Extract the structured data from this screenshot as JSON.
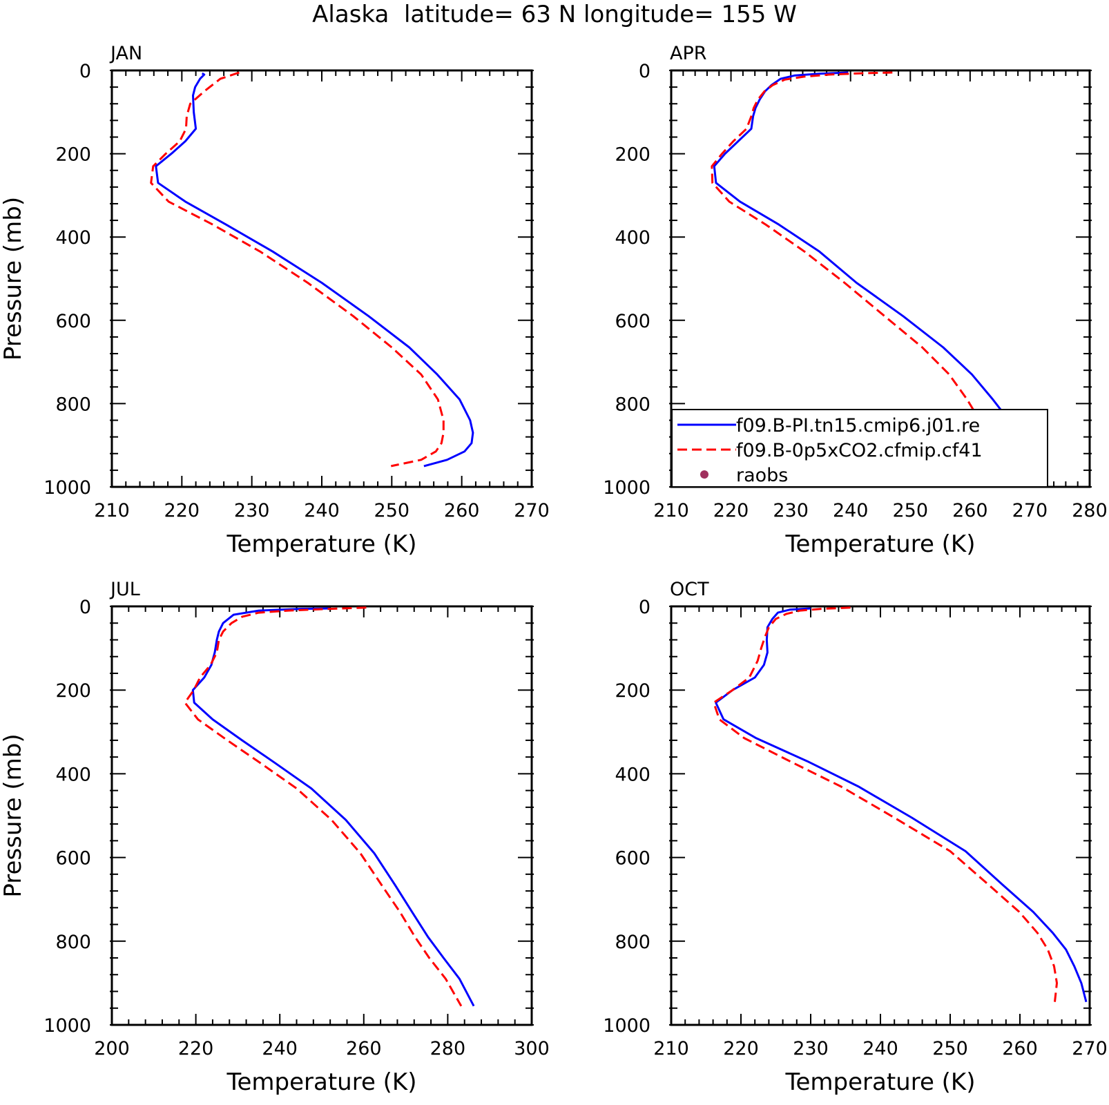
{
  "figure": {
    "title": "Alaska  latitude= 63 N longitude= 155 W"
  },
  "colors": {
    "series_solid": "#0000ff",
    "series_dashed": "#ff0000",
    "raobs_marker": "#a0305e",
    "axis": "#000000"
  },
  "legend": {
    "entries": [
      {
        "label": "f09.B-PI.tn15.cmip6.j01.re",
        "style": "solid",
        "color": "#0000ff"
      },
      {
        "label": "f09.B-0p5xCO2.cfmip.cf41",
        "style": "dashed",
        "color": "#ff0000"
      },
      {
        "label": "raobs",
        "style": "marker",
        "color": "#a0305e"
      }
    ]
  },
  "chart_data": [
    {
      "type": "line",
      "panel": "JAN",
      "xlabel": "Temperature (K)",
      "ylabel": "Pressure (mb)",
      "xlim": [
        210,
        270
      ],
      "ylim": [
        1000,
        0
      ],
      "xticks": [
        210,
        220,
        230,
        240,
        250,
        260,
        270
      ],
      "yticks": [
        0,
        200,
        400,
        600,
        800,
        1000
      ],
      "series": [
        {
          "name": "f09.B-PI.tn15.cmip6.j01.re",
          "style": "solid",
          "points": [
            [
              222.9,
              7
            ],
            [
              223.2,
              10
            ],
            [
              222.6,
              20
            ],
            [
              221.9,
              40
            ],
            [
              221.6,
              60
            ],
            [
              221.7,
              100
            ],
            [
              222.0,
              140
            ],
            [
              220.5,
              170
            ],
            [
              218.5,
              200
            ],
            [
              216.3,
              230
            ],
            [
              216.6,
              270
            ],
            [
              220.5,
              315
            ],
            [
              226.3,
              370
            ],
            [
              233.0,
              435
            ],
            [
              240.0,
              510
            ],
            [
              246.7,
              590
            ],
            [
              252.5,
              665
            ],
            [
              256.5,
              730
            ],
            [
              259.7,
              790
            ],
            [
              261.2,
              840
            ],
            [
              261.6,
              870
            ],
            [
              261.4,
              895
            ],
            [
              260.4,
              915
            ],
            [
              257.9,
              935
            ],
            [
              254.6,
              950
            ]
          ]
        },
        {
          "name": "f09.B-0p5xCO2.cfmip.cf41",
          "style": "dashed",
          "points": [
            [
              228.2,
              5
            ],
            [
              225.5,
              20
            ],
            [
              223.2,
              50
            ],
            [
              221.2,
              80
            ],
            [
              220.7,
              110
            ],
            [
              220.6,
              140
            ],
            [
              219.7,
              170
            ],
            [
              217.7,
              200
            ],
            [
              215.9,
              230
            ],
            [
              215.6,
              270
            ],
            [
              218.1,
              315
            ],
            [
              224.4,
              370
            ],
            [
              231.2,
              435
            ],
            [
              238.0,
              510
            ],
            [
              244.5,
              590
            ],
            [
              250.0,
              665
            ],
            [
              254.2,
              730
            ],
            [
              256.6,
              790
            ],
            [
              257.4,
              840
            ],
            [
              257.4,
              870
            ],
            [
              257.1,
              895
            ],
            [
              256.3,
              915
            ],
            [
              254.2,
              935
            ],
            [
              249.9,
              950
            ]
          ]
        }
      ]
    },
    {
      "type": "line",
      "panel": "APR",
      "xlabel": "Temperature (K)",
      "ylabel": "",
      "xlim": [
        210,
        280
      ],
      "ylim": [
        1000,
        0
      ],
      "xticks": [
        210,
        220,
        230,
        240,
        250,
        260,
        270,
        280
      ],
      "yticks": [
        0,
        200,
        400,
        600,
        800,
        1000
      ],
      "series": [
        {
          "name": "f09.B-PI.tn15.cmip6.j01.re",
          "style": "solid",
          "points": [
            [
              239.6,
              5
            ],
            [
              234.8,
              8
            ],
            [
              230.7,
              12
            ],
            [
              228.3,
              20
            ],
            [
              226.8,
              35
            ],
            [
              225.7,
              50
            ],
            [
              224.8,
              70
            ],
            [
              224.1,
              90
            ],
            [
              223.7,
              110
            ],
            [
              223.4,
              140
            ],
            [
              221.2,
              170
            ],
            [
              219.0,
              200
            ],
            [
              217.2,
              230
            ],
            [
              217.5,
              270
            ],
            [
              221.5,
              315
            ],
            [
              228.0,
              370
            ],
            [
              234.8,
              435
            ],
            [
              241.0,
              510
            ],
            [
              248.8,
              590
            ],
            [
              255.5,
              665
            ],
            [
              260.3,
              730
            ],
            [
              263.8,
              790
            ],
            [
              266.5,
              840
            ],
            [
              268.4,
              880
            ],
            [
              269.8,
              920
            ],
            [
              271.0,
              960
            ]
          ]
        },
        {
          "name": "f09.B-0p5xCO2.cfmip.cf41",
          "style": "dashed",
          "points": [
            [
              247.0,
              5
            ],
            [
              241.5,
              7
            ],
            [
              236.4,
              10
            ],
            [
              232.2,
              15
            ],
            [
              229.0,
              22
            ],
            [
              227.0,
              35
            ],
            [
              225.6,
              50
            ],
            [
              224.5,
              70
            ],
            [
              223.8,
              90
            ],
            [
              223.4,
              110
            ],
            [
              222.6,
              140
            ],
            [
              220.4,
              170
            ],
            [
              218.5,
              200
            ],
            [
              216.8,
              230
            ],
            [
              216.9,
              270
            ],
            [
              219.7,
              315
            ],
            [
              225.8,
              370
            ],
            [
              232.3,
              435
            ],
            [
              239.0,
              510
            ],
            [
              245.7,
              590
            ],
            [
              252.0,
              665
            ],
            [
              256.5,
              730
            ],
            [
              259.5,
              790
            ],
            [
              261.6,
              840
            ],
            [
              263.0,
              880
            ],
            [
              264.0,
              920
            ],
            [
              265.0,
              960
            ]
          ]
        }
      ],
      "raobs": []
    },
    {
      "type": "line",
      "panel": "JUL",
      "xlabel": "Temperature (K)",
      "ylabel": "Pressure (mb)",
      "xlim": [
        200,
        300
      ],
      "ylim": [
        1000,
        0
      ],
      "xticks": [
        200,
        220,
        240,
        260,
        280,
        300
      ],
      "yticks": [
        0,
        200,
        400,
        600,
        800,
        1000
      ],
      "series": [
        {
          "name": "f09.B-PI.tn15.cmip6.j01.re",
          "style": "solid",
          "points": [
            [
              252.0,
              5
            ],
            [
              245.0,
              6
            ],
            [
              235.0,
              10
            ],
            [
              229.0,
              20
            ],
            [
              226.5,
              40
            ],
            [
              225.5,
              60
            ],
            [
              225.0,
              80
            ],
            [
              224.5,
              110
            ],
            [
              223.7,
              140
            ],
            [
              222.0,
              170
            ],
            [
              219.3,
              200
            ],
            [
              219.6,
              230
            ],
            [
              224.0,
              270
            ],
            [
              231.0,
              320
            ],
            [
              239.0,
              375
            ],
            [
              247.5,
              435
            ],
            [
              255.7,
              510
            ],
            [
              262.5,
              590
            ],
            [
              267.4,
              665
            ],
            [
              271.5,
              730
            ],
            [
              275.3,
              790
            ],
            [
              279.0,
              840
            ],
            [
              282.8,
              890
            ],
            [
              286.2,
              955
            ]
          ]
        },
        {
          "name": "f09.B-0p5xCO2.cfmip.cf41",
          "style": "dashed",
          "points": [
            [
              260.6,
              3
            ],
            [
              252.0,
              6
            ],
            [
              242.0,
              10
            ],
            [
              235.0,
              15
            ],
            [
              231.0,
              25
            ],
            [
              228.5,
              40
            ],
            [
              226.5,
              60
            ],
            [
              225.5,
              80
            ],
            [
              225.0,
              110
            ],
            [
              223.5,
              140
            ],
            [
              221.0,
              170
            ],
            [
              219.5,
              200
            ],
            [
              217.4,
              230
            ],
            [
              220.5,
              270
            ],
            [
              227.5,
              320
            ],
            [
              235.5,
              375
            ],
            [
              244.0,
              435
            ],
            [
              252.3,
              510
            ],
            [
              259.2,
              590
            ],
            [
              264.2,
              665
            ],
            [
              268.6,
              730
            ],
            [
              272.2,
              790
            ],
            [
              275.6,
              840
            ],
            [
              279.5,
              890
            ],
            [
              283.2,
              955
            ]
          ]
        }
      ]
    },
    {
      "type": "line",
      "panel": "OCT",
      "xlabel": "Temperature (K)",
      "ylabel": "",
      "xlim": [
        210,
        270
      ],
      "ylim": [
        1000,
        0
      ],
      "xticks": [
        210,
        220,
        230,
        240,
        250,
        260,
        270
      ],
      "yticks": [
        0,
        200,
        400,
        600,
        800,
        1000
      ],
      "series": [
        {
          "name": "f09.B-PI.tn15.cmip6.j01.re",
          "style": "solid",
          "points": [
            [
              230.0,
              5
            ],
            [
              227.0,
              8
            ],
            [
              225.3,
              15
            ],
            [
              224.5,
              30
            ],
            [
              223.8,
              50
            ],
            [
              223.7,
              80
            ],
            [
              223.8,
              110
            ],
            [
              223.3,
              140
            ],
            [
              222.0,
              170
            ],
            [
              218.8,
              200
            ],
            [
              216.4,
              230
            ],
            [
              217.5,
              270
            ],
            [
              222.2,
              315
            ],
            [
              229.5,
              370
            ],
            [
              236.8,
              430
            ],
            [
              244.5,
              505
            ],
            [
              252.2,
              585
            ],
            [
              257.5,
              665
            ],
            [
              261.9,
              730
            ],
            [
              264.7,
              780
            ],
            [
              266.6,
              820
            ],
            [
              267.8,
              860
            ],
            [
              268.8,
              900
            ],
            [
              269.5,
              945
            ]
          ]
        },
        {
          "name": "f09.B-0p5xCO2.cfmip.cf41",
          "style": "dashed",
          "points": [
            [
              235.7,
              3
            ],
            [
              231.5,
              6
            ],
            [
              228.5,
              10
            ],
            [
              226.5,
              18
            ],
            [
              225.0,
              30
            ],
            [
              224.0,
              50
            ],
            [
              223.4,
              75
            ],
            [
              222.9,
              100
            ],
            [
              222.4,
              130
            ],
            [
              221.2,
              170
            ],
            [
              218.8,
              200
            ],
            [
              216.1,
              230
            ],
            [
              216.9,
              270
            ],
            [
              220.5,
              315
            ],
            [
              227.0,
              370
            ],
            [
              234.3,
              430
            ],
            [
              242.0,
              505
            ],
            [
              250.0,
              585
            ],
            [
              255.5,
              665
            ],
            [
              259.9,
              730
            ],
            [
              262.5,
              780
            ],
            [
              264.0,
              820
            ],
            [
              264.9,
              860
            ],
            [
              265.3,
              900
            ],
            [
              265.0,
              945
            ]
          ]
        }
      ]
    }
  ]
}
